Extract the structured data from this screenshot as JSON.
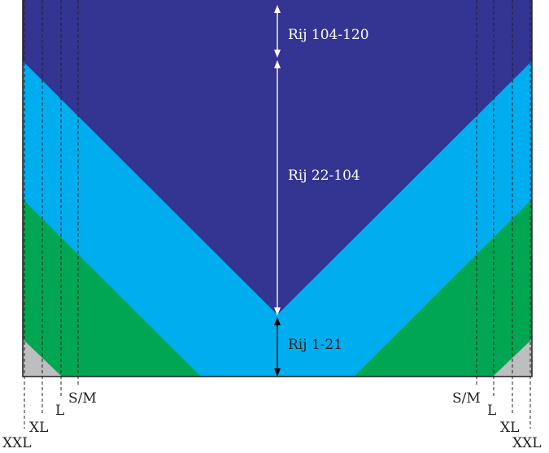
{
  "colors": {
    "dark_blue": "#343493",
    "light_blue": "#00aeef",
    "green": "#00a651",
    "grey": "#bcbec0",
    "outline": "#231f20",
    "arrow_white": "#ffffff",
    "arrow_black": "#000000",
    "text_white": "#ffffff",
    "text_dark": "#231f20"
  },
  "row_labels": {
    "top": "Rij 104-120",
    "middle": "Rij 22-104",
    "bottom": "Rij 1-21"
  },
  "size_labels": {
    "left": {
      "sm": "S/M",
      "l": "L",
      "xl": "XL",
      "xxl": "XXL"
    },
    "right": {
      "sm": "S/M",
      "l": "L",
      "xl": "XL",
      "xxl": "XXL"
    }
  }
}
